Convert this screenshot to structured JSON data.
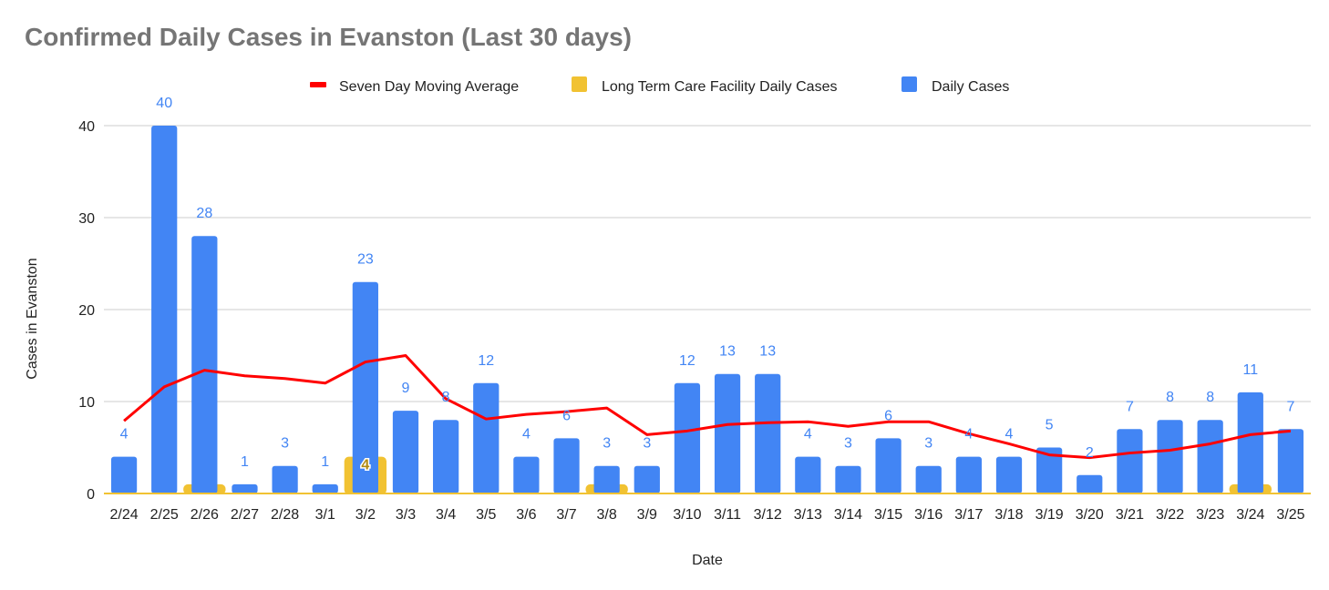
{
  "chart_data": {
    "type": "bar",
    "title": "Confirmed Daily Cases in Evanston (Last 30 days)",
    "xlabel": "Date",
    "ylabel": "Cases in Evanston",
    "ylim": [
      0,
      40
    ],
    "yticks": [
      0,
      10,
      20,
      30,
      40
    ],
    "grid": true,
    "legend_position": "top",
    "categories": [
      "2/24",
      "2/25",
      "2/26",
      "2/27",
      "2/28",
      "3/1",
      "3/2",
      "3/3",
      "3/4",
      "3/5",
      "3/6",
      "3/7",
      "3/8",
      "3/9",
      "3/10",
      "3/11",
      "3/12",
      "3/13",
      "3/14",
      "3/15",
      "3/16",
      "3/17",
      "3/18",
      "3/19",
      "3/20",
      "3/21",
      "3/22",
      "3/23",
      "3/24",
      "3/25"
    ],
    "series": [
      {
        "name": "Seven Day Moving Average",
        "type": "line",
        "color": "#ff0000",
        "values": [
          7.9,
          11.6,
          13.4,
          12.8,
          12.5,
          12.0,
          14.3,
          15.0,
          10.3,
          8.1,
          8.6,
          8.9,
          9.3,
          6.4,
          6.8,
          7.5,
          7.7,
          7.8,
          7.3,
          7.8,
          7.8,
          6.5,
          5.4,
          4.2,
          3.9,
          4.4,
          4.7,
          5.4,
          6.4,
          6.8
        ]
      },
      {
        "name": "Long Term Care Facility Daily Cases",
        "type": "bar",
        "color": "#f1c232",
        "values": [
          0,
          0,
          1,
          0,
          0,
          0,
          4,
          0,
          0,
          0,
          0,
          0,
          1,
          0,
          0,
          0,
          0,
          0,
          0,
          0,
          0,
          0,
          0,
          0,
          0,
          0,
          0,
          0,
          1,
          0
        ],
        "labels": [
          "",
          "",
          "",
          "",
          "",
          "",
          "4",
          "",
          "",
          "",
          "",
          "",
          "",
          "",
          "",
          "",
          "",
          "",
          "",
          "",
          "",
          "",
          "",
          "",
          "",
          "",
          "",
          "",
          "",
          ""
        ]
      },
      {
        "name": "Daily Cases",
        "type": "bar",
        "color": "#4285f4",
        "values": [
          4,
          40,
          28,
          1,
          3,
          1,
          23,
          9,
          8,
          12,
          4,
          6,
          3,
          3,
          12,
          13,
          13,
          4,
          3,
          6,
          3,
          4,
          4,
          5,
          2,
          7,
          8,
          8,
          11,
          7
        ],
        "labels": [
          "4",
          "40",
          "28",
          "1",
          "3",
          "1",
          "23",
          "9",
          "8",
          "12",
          "4",
          "6",
          "3",
          "3",
          "12",
          "13",
          "13",
          "4",
          "3",
          "6",
          "3",
          "4",
          "4",
          "5",
          "2",
          "7",
          "8",
          "8",
          "11",
          "7"
        ]
      }
    ],
    "legend": [
      "Seven Day Moving Average",
      "Long Term Care Facility Daily Cases",
      "Daily Cases"
    ],
    "colors": {
      "gridline": "#cccccc",
      "baseline": "#f1c232",
      "title": "#757575"
    }
  }
}
